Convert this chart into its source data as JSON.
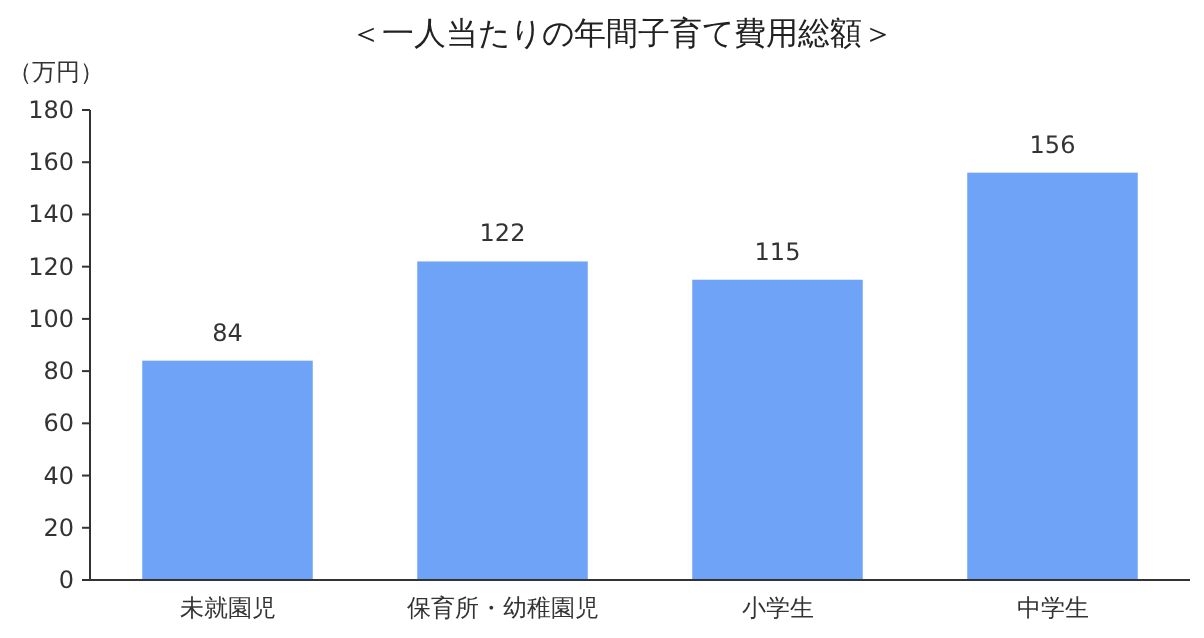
{
  "chart_data": {
    "type": "bar",
    "title": "＜一人当たりの年間子育て費用総額＞",
    "ylabel": "（万円）",
    "categories": [
      "未就園児",
      "保育所・幼稚園児",
      "小学生",
      "中学生"
    ],
    "values": [
      84,
      122,
      115,
      156
    ],
    "color": "#6fa3f7",
    "ylim": [
      0,
      180
    ],
    "yticks": [
      0,
      20,
      40,
      60,
      80,
      100,
      120,
      140,
      160,
      180
    ],
    "data_labels": true
  }
}
